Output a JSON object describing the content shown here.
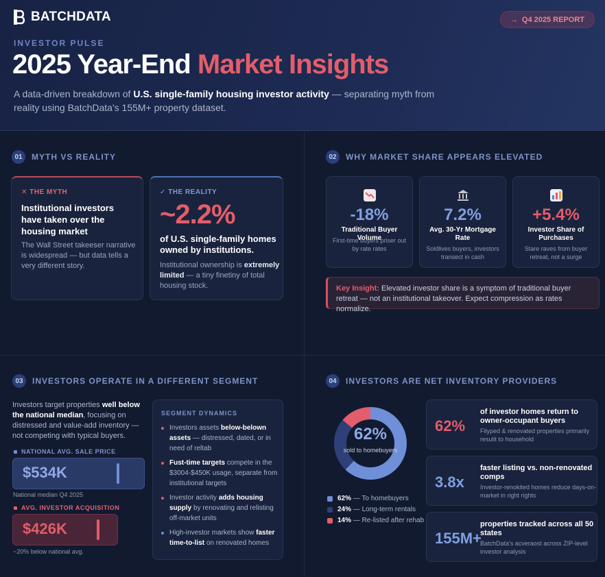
{
  "brand": {
    "name": "BATCHDATA"
  },
  "header": {
    "report_label": "Q4 2025 REPORT",
    "eyebrow": "INVESTOR PULSE",
    "title_main": "2025 Year-End",
    "title_accent": "Market Insights",
    "subtitle_pre": "A data-driven breakdown of",
    "subtitle_bold": "U.S. single-family housing investor activity",
    "subtitle_post": "— separating myth from reality using BatchData's 155M+ property dataset."
  },
  "section1": {
    "number": "01",
    "title": "MYTH VS REALITY",
    "myth": {
      "tag": "THE MYTH",
      "headline": "Institutional investors have taken over the housing market",
      "body": "The Wall Street takeeser narrative is widespread — but data tells a very different story."
    },
    "reality": {
      "tag": "THE REALITY",
      "stat": "~2.2%",
      "headline": "of U.S. single-family homes owned by institutions.",
      "body_pre": "Institutional ownership is",
      "body_bold": "extremely limited",
      "body_post": "— a tiny finetiny of total housing stock."
    }
  },
  "section2": {
    "number": "02",
    "title": "WHY MARKET SHARE APPEARS ELEVATED",
    "cards": [
      {
        "icon": "chart-down-icon",
        "stat": "-18%",
        "label": "Traditional Buyer Volume",
        "sub": "First-time buyers priser out by rate rates",
        "color": "#7fa0e0"
      },
      {
        "icon": "bank-icon",
        "stat": "7.2%",
        "label": "Avg. 30-Yr Mortgage Rate",
        "sub": "Soldlives buyers, investors transect in cash",
        "color": "#7fa0e0"
      },
      {
        "icon": "bar-chart-icon",
        "stat": "+5.4%",
        "label": "Investor Share of Purchases",
        "sub": "Stare raves from buyer retreat, not a surge",
        "color": "#e35d6a"
      }
    ],
    "insight_key": "Key Insight:",
    "insight_text": "Elevated investor share is a symptom of traditional buyer retreat — not an institutional takeover. Expect compression as rates normalize."
  },
  "section3": {
    "number": "03",
    "title": "INVESTORS OPERATE IN A DIFFERENT SEGMENT",
    "intro_pre": "Investors target properties",
    "intro_bold": "well below the national median",
    "intro_post": ", focusing on distressed and value-add inventory — not competing with typical buyers.",
    "national": {
      "label": "NATIONAL AVG. SALE PRICE",
      "value": "$534K",
      "note": "National median Q4 2025"
    },
    "investor": {
      "label": "AVG. INVESTOR ACQUISITION",
      "value": "$426K",
      "note": "~20% below national avg."
    },
    "dynamics_title": "SEGMENT DYNAMICS",
    "dynamics": [
      {
        "pre": "Investors assets",
        "bold": "below-belown assets",
        "post": "— distressed, dated, or in need of reltab",
        "color": "#e35d6a"
      },
      {
        "pre": "",
        "bold": "Fust-time targets",
        "post": "compete in the $3004-$450K usage, separate from institutional targets",
        "color": "#e35d6a"
      },
      {
        "pre": "Investor activity",
        "bold": "adds housing supply",
        "post": "by renovating and relisting off-market units",
        "color": "#e35d6a"
      },
      {
        "pre": "High-investor markets show",
        "bold": "faster time-to-list",
        "post": "on renovated homes",
        "color": "#6f8fd8"
      }
    ]
  },
  "section4": {
    "number": "04",
    "title": "INVESTORS ARE NET INVENTORY PROVIDERS",
    "donut_center": "62%",
    "donut_caption": "sold to homebuyers",
    "segments": [
      {
        "pct": 62,
        "label": "62%",
        "text": "— To homebuyers",
        "color": "#6f8fd8"
      },
      {
        "pct": 24,
        "label": "24%",
        "text": "— Long-term rentals",
        "color": "#2f3f78"
      },
      {
        "pct": 14,
        "label": "14%",
        "text": "— Re-listed after rehab",
        "color": "#e35d6a"
      }
    ],
    "cards": [
      {
        "value": "62%",
        "headline": "of investor homes return to owner-occupant buyers",
        "sub": "Filyped & renovated properties primarily resulit to household",
        "color": "#e35d6a"
      },
      {
        "value": "3.8x",
        "headline": "faster listing vs. non-renovated comps",
        "sub": "Investor-renokited homes reduce days-on-market in right rights",
        "color": "#7fa0e0"
      },
      {
        "value": "155M+",
        "headline": "properties tracked across all 50 states",
        "sub": "BatchData's acveraost across ZIP-level investor analysis",
        "color": "#7fa0e0"
      }
    ]
  }
}
